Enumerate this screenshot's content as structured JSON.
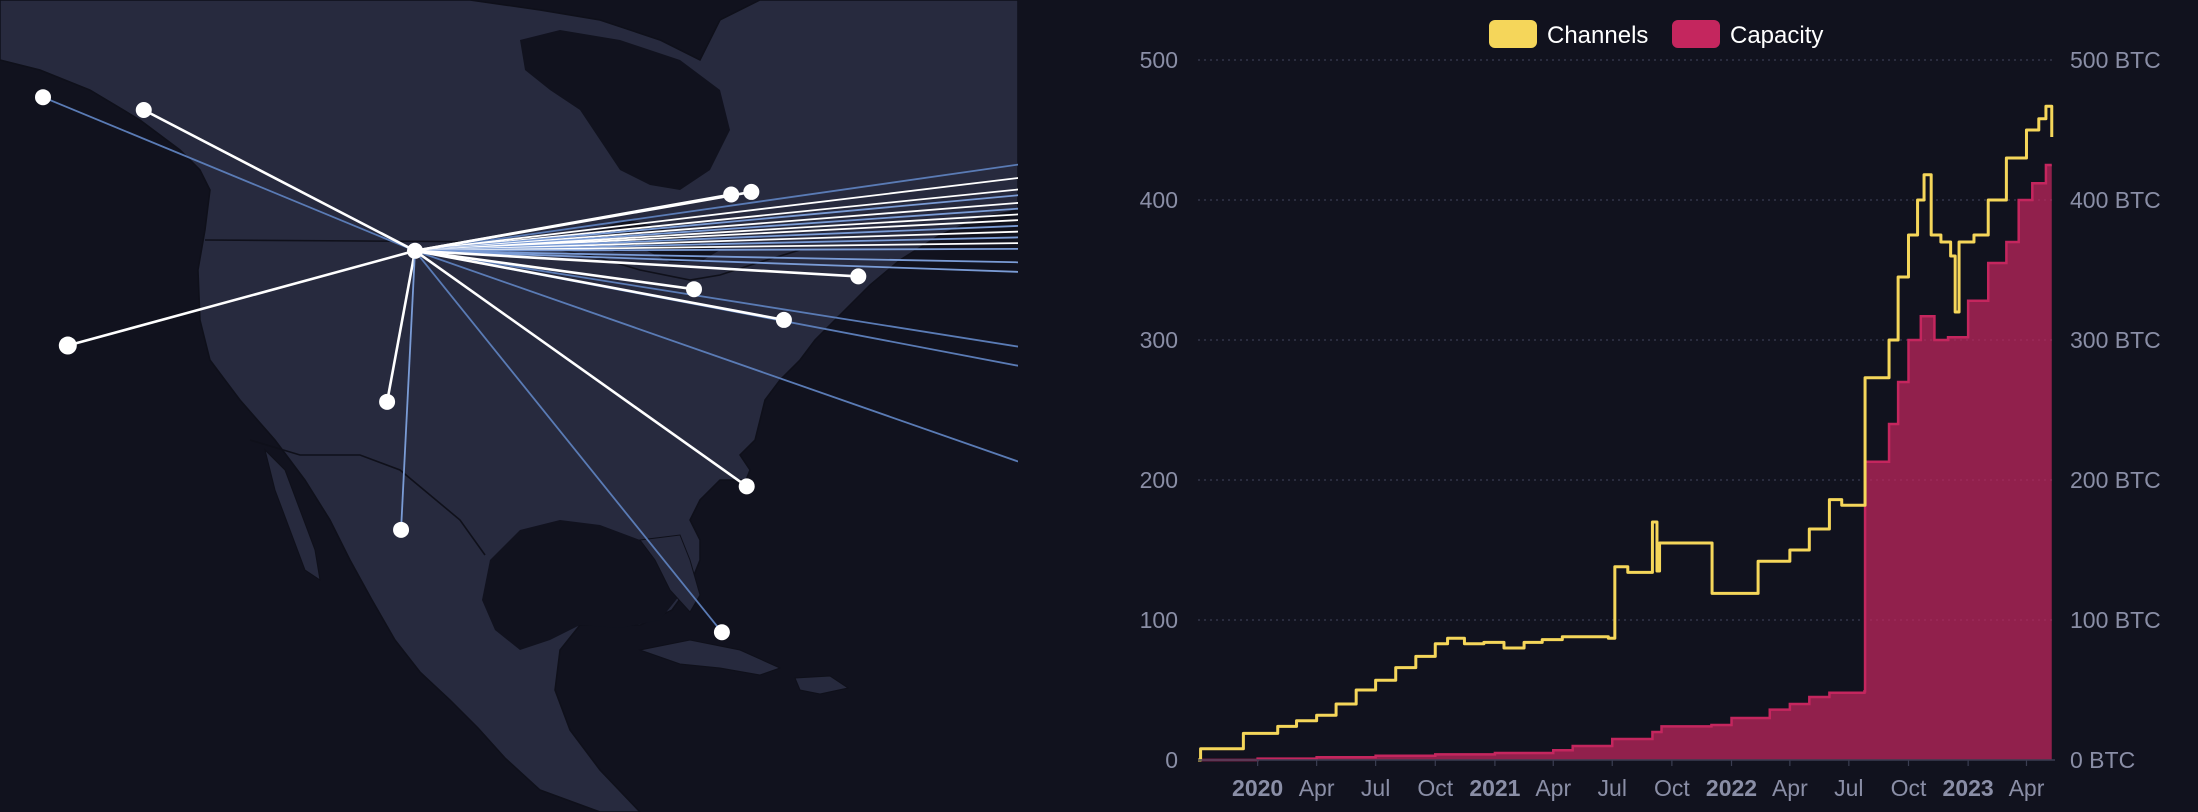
{
  "map": {
    "hub_node": "hub",
    "nodes": [
      {
        "id": "hub",
        "lon": -100.0,
        "lat": 41.5
      },
      {
        "id": "seattle",
        "lon": -124.0,
        "lat": 47.5
      },
      {
        "id": "spokane",
        "lon": -117.5,
        "lat": 47.0
      },
      {
        "id": "sf",
        "lon": -122.4,
        "lat": 37.8
      },
      {
        "id": "okc",
        "lon": -101.8,
        "lat": 35.6
      },
      {
        "id": "austin",
        "lon": -100.9,
        "lat": 30.6
      },
      {
        "id": "charleston",
        "lon": -78.6,
        "lat": 32.3
      },
      {
        "id": "miami",
        "lon": -80.2,
        "lat": 26.6
      },
      {
        "id": "toronto",
        "lon": -79.6,
        "lat": 43.7
      },
      {
        "id": "montreal",
        "lon": -78.3,
        "lat": 43.8
      },
      {
        "id": "columbus",
        "lon": -82.0,
        "lat": 40.0
      },
      {
        "id": "dc",
        "lon": -76.2,
        "lat": 38.8
      },
      {
        "id": "nyc",
        "lon": -71.4,
        "lat": 40.5
      }
    ],
    "links": [
      {
        "from": "hub",
        "to": "seattle",
        "color": "#5a7bb5"
      },
      {
        "from": "hub",
        "to": "spokane",
        "color": "#ffffff"
      },
      {
        "from": "hub",
        "to": "sf",
        "color": "#ffffff"
      },
      {
        "from": "hub",
        "to": "okc",
        "color": "#ffffff"
      },
      {
        "from": "hub",
        "to": "austin",
        "color": "#7a9bd5"
      },
      {
        "from": "hub",
        "to": "charleston",
        "color": "#ffffff"
      },
      {
        "from": "hub",
        "to": "miami",
        "color": "#5a7bb5"
      },
      {
        "from": "hub",
        "to": "toronto",
        "color": "#ffffff"
      },
      {
        "from": "hub",
        "to": "montreal",
        "color": "#ffffff"
      },
      {
        "from": "hub",
        "to": "columbus",
        "color": "#ffffff"
      },
      {
        "from": "hub",
        "to": "dc",
        "color": "#ffffff"
      },
      {
        "from": "hub",
        "to": "nyc",
        "color": "#ffffff"
      }
    ],
    "offscreen_links": [
      {
        "target_lon": -48,
        "target_lat": 46,
        "color": "#5a7bb5"
      },
      {
        "target_lon": -48,
        "target_lat": 45.3,
        "color": "#ffffff"
      },
      {
        "target_lon": -48,
        "target_lat": 44.7,
        "color": "#ffffff"
      },
      {
        "target_lon": -48,
        "target_lat": 44.4,
        "color": "#7a9bd5"
      },
      {
        "target_lon": -48,
        "target_lat": 44.0,
        "color": "#ffffff"
      },
      {
        "target_lon": -48,
        "target_lat": 43.7,
        "color": "#7a9bd5"
      },
      {
        "target_lon": -48,
        "target_lat": 43.4,
        "color": "#ffffff"
      },
      {
        "target_lon": -48,
        "target_lat": 43.1,
        "color": "#ffffff"
      },
      {
        "target_lon": -48,
        "target_lat": 42.8,
        "color": "#7a9bd5"
      },
      {
        "target_lon": -48,
        "target_lat": 42.5,
        "color": "#ffffff"
      },
      {
        "target_lon": -48,
        "target_lat": 42.2,
        "color": "#7a9bd5"
      },
      {
        "target_lon": -48,
        "target_lat": 41.9,
        "color": "#ffffff"
      },
      {
        "target_lon": -48,
        "target_lat": 41.6,
        "color": "#7a9bd5"
      },
      {
        "target_lon": -48,
        "target_lat": 40.9,
        "color": "#7a9bd5"
      },
      {
        "target_lon": -48,
        "target_lat": 40.4,
        "color": "#7a9bd5"
      },
      {
        "target_lon": -48,
        "target_lat": 36.5,
        "color": "#5a7bb5"
      },
      {
        "target_lon": -48,
        "target_lat": 35.5,
        "color": "#5a7bb5"
      },
      {
        "target_lon": -48,
        "target_lat": 30.5,
        "color": "#5a7bb5"
      }
    ],
    "colors": {
      "ocean": "#11121e",
      "land": "#272a3e",
      "border": "#0f101a",
      "node": "#ffffff"
    }
  },
  "chart_data": {
    "type": "line",
    "legend": [
      {
        "label": "Channels",
        "color": "#f5d65a"
      },
      {
        "label": "Capacity",
        "color": "#c4265e"
      }
    ],
    "legend_position": "top-center",
    "grid": true,
    "x_ticks": [
      {
        "label": "2020",
        "date": "2020-01-01",
        "bold": true
      },
      {
        "label": "Apr",
        "date": "2020-04-01",
        "bold": false
      },
      {
        "label": "Jul",
        "date": "2020-07-01",
        "bold": false
      },
      {
        "label": "Oct",
        "date": "2020-10-01",
        "bold": false
      },
      {
        "label": "2021",
        "date": "2021-01-01",
        "bold": true
      },
      {
        "label": "Apr",
        "date": "2021-04-01",
        "bold": false
      },
      {
        "label": "Jul",
        "date": "2021-07-01",
        "bold": false
      },
      {
        "label": "Oct",
        "date": "2021-10-01",
        "bold": false
      },
      {
        "label": "2022",
        "date": "2022-01-01",
        "bold": true
      },
      {
        "label": "Apr",
        "date": "2022-04-01",
        "bold": false
      },
      {
        "label": "Jul",
        "date": "2022-07-01",
        "bold": false
      },
      {
        "label": "Oct",
        "date": "2022-10-01",
        "bold": false
      },
      {
        "label": "2023",
        "date": "2023-01-01",
        "bold": true
      },
      {
        "label": "Apr",
        "date": "2023-04-01",
        "bold": false
      }
    ],
    "x_range": [
      "2019-10-01",
      "2023-05-15"
    ],
    "y_left": {
      "range": [
        0,
        500
      ],
      "ticks": [
        "0",
        "100",
        "200",
        "300",
        "400",
        "500"
      ],
      "tick_values": [
        0,
        100,
        200,
        300,
        400,
        500
      ]
    },
    "y_right": {
      "range": [
        0,
        500
      ],
      "ticks": [
        "0 BTC",
        "100 BTC",
        "200 BTC",
        "300 BTC",
        "400 BTC",
        "500 BTC"
      ],
      "tick_values": [
        0,
        100,
        200,
        300,
        400,
        500
      ]
    },
    "series": [
      {
        "name": "Channels",
        "axis": "left",
        "style": "step-line",
        "color": "#f5d65a",
        "points": [
          [
            "2019-10-01",
            0
          ],
          [
            "2019-10-05",
            8
          ],
          [
            "2019-11-20",
            8
          ],
          [
            "2019-12-10",
            19
          ],
          [
            "2020-01-05",
            19
          ],
          [
            "2020-02-01",
            24
          ],
          [
            "2020-03-01",
            28
          ],
          [
            "2020-04-01",
            32
          ],
          [
            "2020-05-01",
            40
          ],
          [
            "2020-06-01",
            50
          ],
          [
            "2020-07-01",
            57
          ],
          [
            "2020-08-01",
            66
          ],
          [
            "2020-09-01",
            74
          ],
          [
            "2020-10-01",
            83
          ],
          [
            "2020-10-20",
            87
          ],
          [
            "2020-11-15",
            83
          ],
          [
            "2020-12-15",
            84
          ],
          [
            "2021-01-15",
            80
          ],
          [
            "2021-02-15",
            84
          ],
          [
            "2021-03-15",
            86
          ],
          [
            "2021-04-15",
            88
          ],
          [
            "2021-05-15",
            88
          ],
          [
            "2021-06-25",
            87
          ],
          [
            "2021-07-05",
            138
          ],
          [
            "2021-07-25",
            134
          ],
          [
            "2021-08-15",
            134
          ],
          [
            "2021-09-01",
            170
          ],
          [
            "2021-09-08",
            135
          ],
          [
            "2021-09-12",
            155
          ],
          [
            "2021-12-01",
            155
          ],
          [
            "2021-12-02",
            119
          ],
          [
            "2022-02-10",
            119
          ],
          [
            "2022-02-11",
            142
          ],
          [
            "2022-04-01",
            150
          ],
          [
            "2022-05-01",
            165
          ],
          [
            "2022-06-01",
            186
          ],
          [
            "2022-06-20",
            182
          ],
          [
            "2022-07-25",
            182
          ],
          [
            "2022-07-26",
            273
          ],
          [
            "2022-08-25",
            273
          ],
          [
            "2022-09-01",
            300
          ],
          [
            "2022-09-15",
            345
          ],
          [
            "2022-10-01",
            375
          ],
          [
            "2022-10-15",
            400
          ],
          [
            "2022-10-25",
            418
          ],
          [
            "2022-11-05",
            375
          ],
          [
            "2022-11-20",
            370
          ],
          [
            "2022-12-05",
            360
          ],
          [
            "2022-12-12",
            320
          ],
          [
            "2022-12-18",
            370
          ],
          [
            "2023-01-10",
            375
          ],
          [
            "2023-02-01",
            400
          ],
          [
            "2023-03-01",
            430
          ],
          [
            "2023-04-01",
            450
          ],
          [
            "2023-04-20",
            458
          ],
          [
            "2023-05-01",
            467
          ],
          [
            "2023-05-10",
            445
          ]
        ]
      },
      {
        "name": "Capacity",
        "axis": "right",
        "unit": "BTC",
        "style": "step-area",
        "color": "#c4265e",
        "points": [
          [
            "2019-10-01",
            0
          ],
          [
            "2020-01-01",
            1
          ],
          [
            "2020-04-01",
            2
          ],
          [
            "2020-07-01",
            3
          ],
          [
            "2020-10-01",
            4
          ],
          [
            "2021-01-01",
            5
          ],
          [
            "2021-04-01",
            7
          ],
          [
            "2021-05-01",
            10
          ],
          [
            "2021-07-01",
            15
          ],
          [
            "2021-09-01",
            20
          ],
          [
            "2021-09-15",
            24
          ],
          [
            "2021-12-01",
            25
          ],
          [
            "2022-01-01",
            30
          ],
          [
            "2022-03-01",
            36
          ],
          [
            "2022-04-01",
            40
          ],
          [
            "2022-05-01",
            45
          ],
          [
            "2022-06-01",
            48
          ],
          [
            "2022-07-25",
            49
          ],
          [
            "2022-07-26",
            213
          ],
          [
            "2022-08-20",
            213
          ],
          [
            "2022-09-01",
            240
          ],
          [
            "2022-09-15",
            270
          ],
          [
            "2022-10-01",
            300
          ],
          [
            "2022-10-20",
            317
          ],
          [
            "2022-11-10",
            300
          ],
          [
            "2022-12-01",
            302
          ],
          [
            "2023-01-01",
            328
          ],
          [
            "2023-02-01",
            355
          ],
          [
            "2023-03-01",
            370
          ],
          [
            "2023-03-20",
            400
          ],
          [
            "2023-04-10",
            412
          ],
          [
            "2023-05-01",
            425
          ],
          [
            "2023-05-10",
            425
          ]
        ]
      }
    ]
  }
}
